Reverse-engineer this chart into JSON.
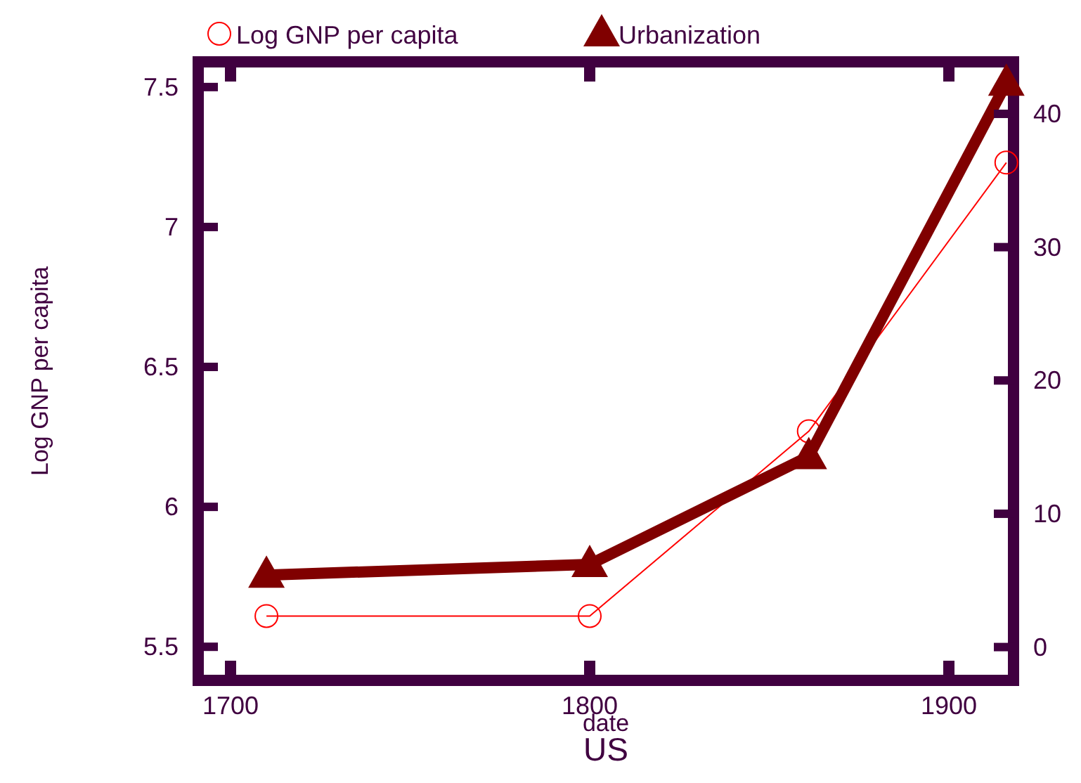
{
  "chart_data": {
    "type": "line",
    "title": "US",
    "xlabel": "date",
    "ylabel": "Log GNP per capita",
    "x": [
      1710,
      1800,
      1861,
      1916
    ],
    "series": [
      {
        "name": "Log GNP per capita",
        "color": "#ff0000",
        "values": [
          5.61,
          5.61,
          6.27,
          7.23
        ],
        "marker": "circle"
      },
      {
        "name": "Urbanization",
        "color": "#800000",
        "values": [
          5.4,
          6.2,
          14.3,
          42.3
        ],
        "marker": "triangle",
        "axis": "y2"
      }
    ],
    "xlim": [
      1691,
      1918
    ],
    "xticks": [
      1700,
      1800,
      1900
    ],
    "ylim": [
      5.38,
      7.59
    ],
    "yticks": [
      5.5,
      6,
      6.5,
      7,
      7.5
    ],
    "y2lim": [
      -2.5,
      43.9
    ],
    "y2ticks": [
      0,
      10,
      20,
      30,
      40
    ],
    "legend": "top",
    "grid": false
  }
}
